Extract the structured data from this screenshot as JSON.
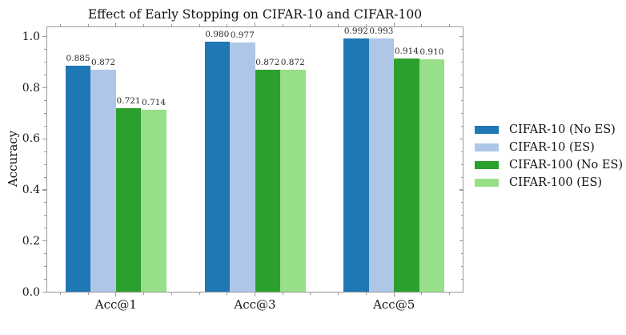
{
  "chart_data": {
    "type": "bar",
    "title": "Effect of Early Stopping on CIFAR-10 and CIFAR-100",
    "xlabel": "",
    "ylabel": "Accuracy",
    "categories": [
      "Acc@1",
      "Acc@3",
      "Acc@5"
    ],
    "series": [
      {
        "name": "CIFAR-10 (No ES)",
        "color": "#1f77b4",
        "values": [
          0.885,
          0.98,
          0.992
        ]
      },
      {
        "name": "CIFAR-10 (ES)",
        "color": "#aec7e8",
        "values": [
          0.872,
          0.977,
          0.993
        ]
      },
      {
        "name": "CIFAR-100 (No ES)",
        "color": "#2ca02c",
        "values": [
          0.721,
          0.872,
          0.914
        ]
      },
      {
        "name": "CIFAR-100 (ES)",
        "color": "#98df8a",
        "values": [
          0.714,
          0.872,
          0.91
        ]
      }
    ],
    "bar_value_labels_decimals": 3,
    "ylim": [
      0,
      1.04
    ],
    "yticks": [
      0.0,
      0.2,
      0.4,
      0.6,
      0.8,
      1.0
    ],
    "ytick_labels": [
      "0.0",
      "0.2",
      "0.4",
      "0.6",
      "0.8",
      "1.0"
    ],
    "grid": false,
    "legend_position": "right-outside"
  }
}
